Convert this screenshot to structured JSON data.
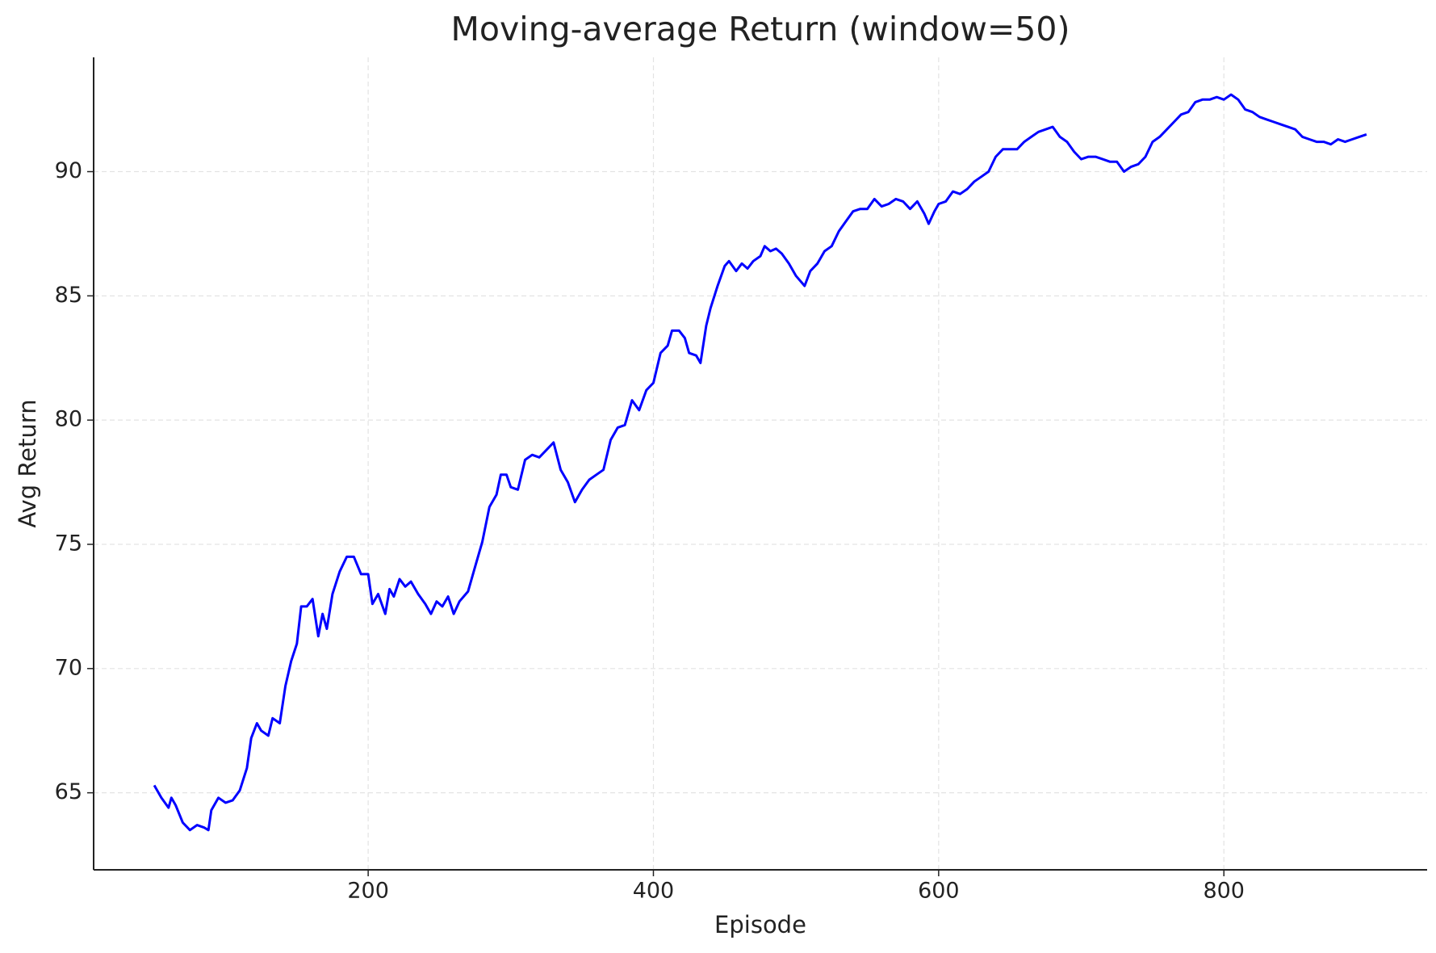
{
  "chart_data": {
    "type": "line",
    "title": "Moving-average Return (window=50)",
    "x_label": "Episode",
    "y_label": "Avg Return",
    "x": [
      50,
      55,
      60,
      62,
      65,
      70,
      75,
      80,
      85,
      88,
      90,
      95,
      100,
      105,
      110,
      115,
      118,
      122,
      125,
      130,
      133,
      138,
      142,
      146,
      150,
      153,
      157,
      161,
      165,
      168,
      171,
      175,
      180,
      185,
      190,
      195,
      200,
      203,
      207,
      212,
      215,
      218,
      222,
      226,
      230,
      235,
      240,
      244,
      248,
      252,
      256,
      260,
      264,
      270,
      275,
      280,
      285,
      290,
      293,
      297,
      300,
      305,
      310,
      315,
      320,
      325,
      330,
      335,
      340,
      345,
      350,
      355,
      360,
      365,
      370,
      375,
      380,
      385,
      390,
      395,
      400,
      405,
      410,
      413,
      418,
      422,
      425,
      430,
      433,
      437,
      440,
      445,
      450,
      453,
      458,
      462,
      466,
      470,
      475,
      478,
      482,
      486,
      490,
      495,
      500,
      506,
      510,
      515,
      520,
      525,
      530,
      535,
      540,
      545,
      550,
      555,
      560,
      565,
      570,
      575,
      580,
      585,
      590,
      593,
      597,
      600,
      605,
      610,
      615,
      620,
      625,
      630,
      635,
      640,
      645,
      650,
      655,
      660,
      665,
      670,
      675,
      680,
      685,
      690,
      695,
      700,
      705,
      710,
      715,
      720,
      725,
      730,
      735,
      740,
      745,
      750,
      755,
      760,
      765,
      770,
      775,
      780,
      785,
      790,
      795,
      800,
      805,
      810,
      815,
      820,
      825,
      830,
      835,
      840,
      845,
      850,
      855,
      860,
      865,
      870,
      875,
      880,
      885,
      890,
      895,
      900
    ],
    "series": [
      {
        "name": "Avg Return",
        "color": "#0000ff",
        "values": [
          65.3,
          64.8,
          64.4,
          64.8,
          64.5,
          63.8,
          63.5,
          63.7,
          63.6,
          63.5,
          64.3,
          64.8,
          64.6,
          64.7,
          65.1,
          66.0,
          67.2,
          67.8,
          67.5,
          67.3,
          68.0,
          67.8,
          69.3,
          70.3,
          71.0,
          72.5,
          72.5,
          72.8,
          71.3,
          72.2,
          71.6,
          73.0,
          73.9,
          74.5,
          74.5,
          73.8,
          73.8,
          72.6,
          73.0,
          72.2,
          73.2,
          72.9,
          73.6,
          73.3,
          73.5,
          73.0,
          72.6,
          72.2,
          72.7,
          72.5,
          72.9,
          72.2,
          72.7,
          73.1,
          74.1,
          75.1,
          76.5,
          77.0,
          77.8,
          77.8,
          77.3,
          77.2,
          78.4,
          78.6,
          78.5,
          78.8,
          79.1,
          78.0,
          77.5,
          76.7,
          77.2,
          77.6,
          77.8,
          78.0,
          79.2,
          79.7,
          79.8,
          80.8,
          80.4,
          81.2,
          81.5,
          82.7,
          83.0,
          83.6,
          83.6,
          83.3,
          82.7,
          82.6,
          82.3,
          83.8,
          84.5,
          85.4,
          86.2,
          86.4,
          86.0,
          86.3,
          86.1,
          86.4,
          86.6,
          87.0,
          86.8,
          86.9,
          86.7,
          86.3,
          85.8,
          85.4,
          86.0,
          86.3,
          86.8,
          87.0,
          87.6,
          88.0,
          88.4,
          88.5,
          88.5,
          88.9,
          88.6,
          88.7,
          88.9,
          88.8,
          88.5,
          88.8,
          88.3,
          87.9,
          88.4,
          88.7,
          88.8,
          89.2,
          89.1,
          89.3,
          89.6,
          89.8,
          90.0,
          90.6,
          90.9,
          90.9,
          90.9,
          91.2,
          91.4,
          91.6,
          91.7,
          91.8,
          91.4,
          91.2,
          90.8,
          90.5,
          90.6,
          90.6,
          90.5,
          90.4,
          90.4,
          90.0,
          90.2,
          90.3,
          90.6,
          91.2,
          91.4,
          91.7,
          92.0,
          92.3,
          92.4,
          92.8,
          92.9,
          92.9,
          93.0,
          92.9,
          93.1,
          92.9,
          92.5,
          92.4,
          92.2,
          92.1,
          92.0,
          91.9,
          91.8,
          91.7,
          91.4,
          91.3,
          91.2,
          91.2,
          91.1,
          91.3,
          91.2,
          91.3,
          91.4,
          91.5
        ]
      }
    ],
    "xlim": [
      7.5,
      942.5
    ],
    "ylim": [
      61.9,
      94.6
    ],
    "xticks": [
      200,
      400,
      600,
      800
    ],
    "yticks": [
      65,
      70,
      75,
      80,
      85,
      90
    ],
    "grid": true
  }
}
